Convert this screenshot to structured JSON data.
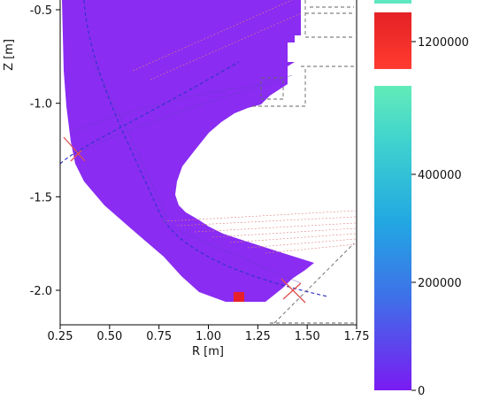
{
  "chart_data": [
    {
      "type": "heatmap",
      "title": "",
      "xlabel": "R [m]",
      "ylabel": "Z [m]",
      "xlim": [
        0.25,
        1.75
      ],
      "ylim": [
        -2.2,
        -0.45
      ],
      "x_ticks": [
        0.25,
        0.5,
        0.75,
        1.0,
        1.25,
        1.5,
        1.75
      ],
      "x_tick_labels": [
        "0.25",
        "0.50",
        "0.75",
        "1.00",
        "1.25",
        "1.50",
        "1.75"
      ],
      "y_ticks": [
        -0.5,
        -1.0,
        -1.5,
        -2.0
      ],
      "y_tick_labels": [
        "-0.5",
        "-1.0",
        "-1.5",
        "-2.0"
      ],
      "fill_color": "#8a2cf2",
      "hotspot": {
        "r": 1.17,
        "z": -2.06,
        "color": "#e8202a"
      },
      "markers": [
        {
          "r": 0.36,
          "z": -1.28,
          "color": "#e05050",
          "symbol": "x"
        },
        {
          "r": 1.42,
          "z": -1.95,
          "color": "#e05050",
          "symbol": "x"
        }
      ]
    },
    {
      "type": "colorbar",
      "colormap": "rainbow",
      "range": [
        0,
        1260000
      ],
      "segments": [
        {
          "ticks": [
            0,
            200000,
            400000
          ],
          "tick_labels": [
            "0",
            "200000",
            "400000"
          ],
          "top_color": "#62ecb9",
          "bottom_color": "#7a1bf2"
        },
        {
          "ticks": [
            1200000
          ],
          "tick_labels": [
            "1200000"
          ],
          "top_color": "#e52125",
          "bottom_color": "#ff3b30"
        }
      ]
    }
  ]
}
